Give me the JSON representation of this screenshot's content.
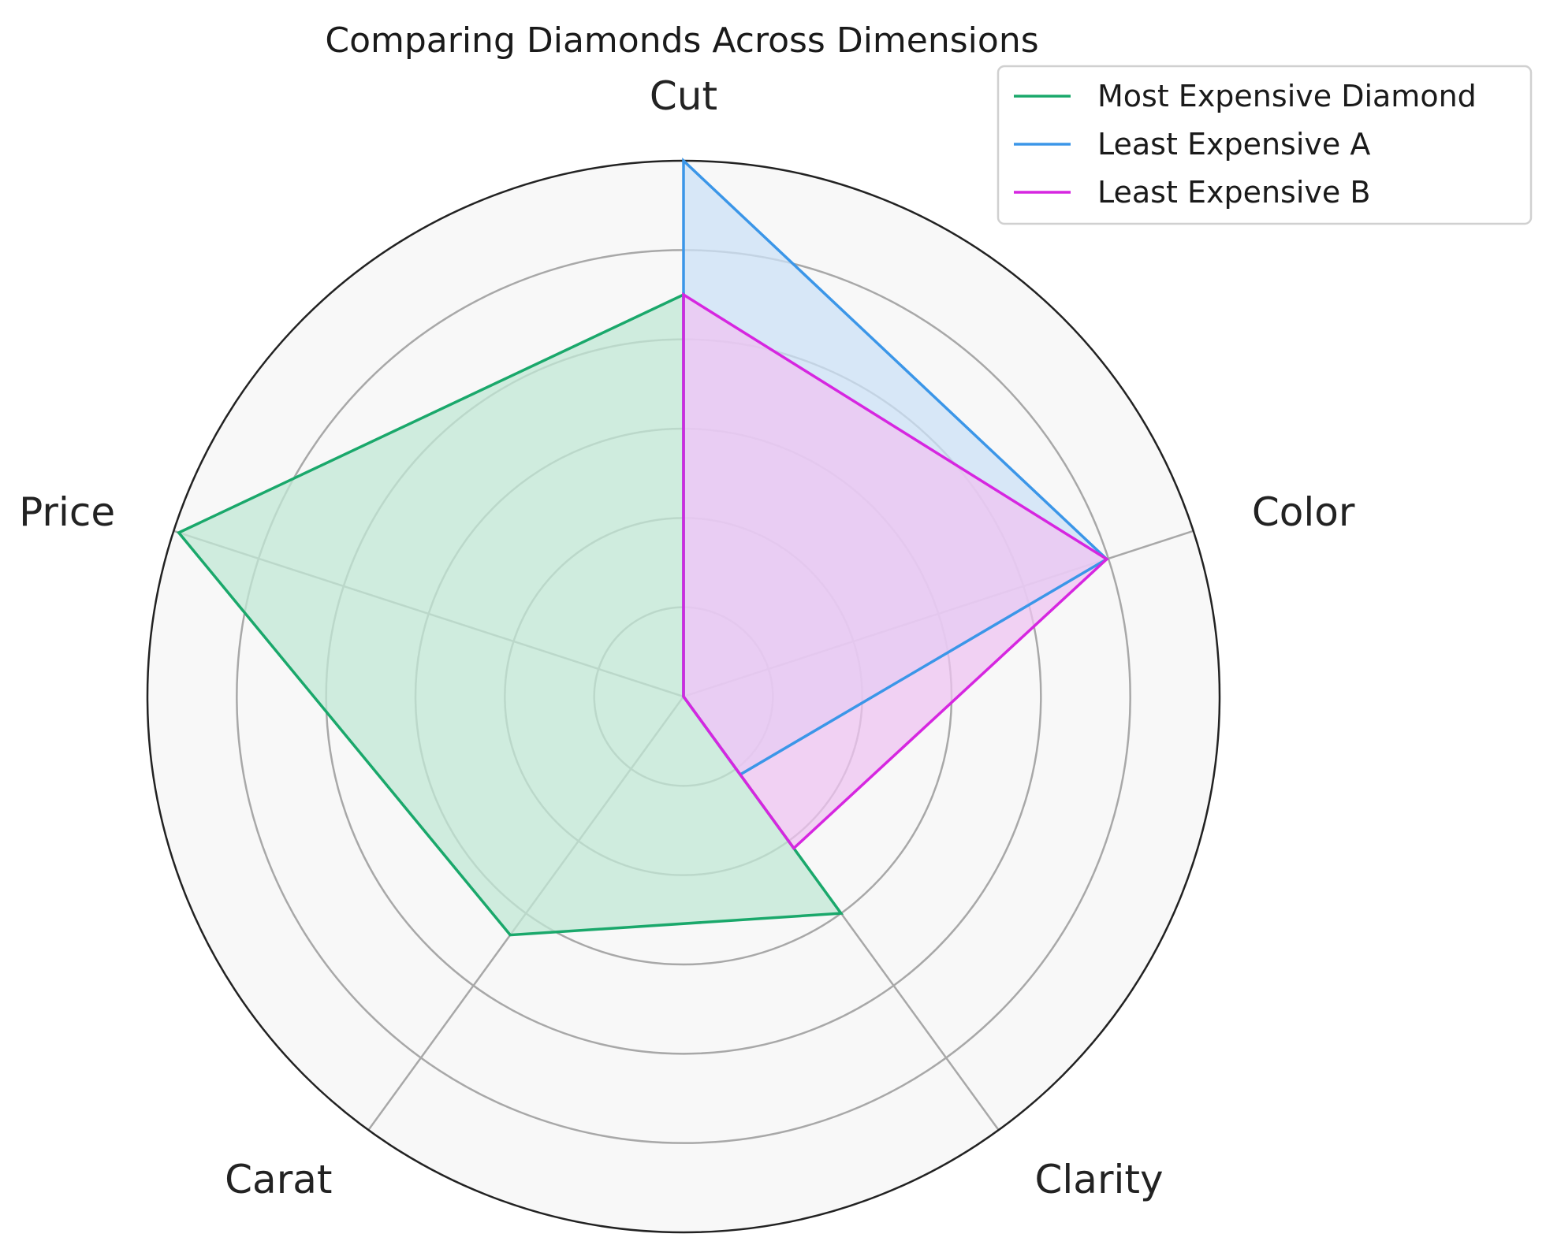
{
  "chart_data": {
    "type": "radar",
    "title": "Comparing Diamonds Across Dimensions",
    "axes": [
      "Cut",
      "Color",
      "Clarity",
      "Carat",
      "Price"
    ],
    "rlim": [
      0,
      1
    ],
    "rings": 5,
    "grid": true,
    "legend_position": "top-right",
    "series": [
      {
        "name": "Most Expensive Diamond",
        "color": "#1aa86b",
        "fill": "#c1e8d6",
        "values": [
          0.75,
          0.0,
          0.5,
          0.55,
          0.99
        ]
      },
      {
        "name": "Least Expensive A",
        "color": "#3b96e8",
        "fill": "#cce1f7",
        "values": [
          1.0,
          0.83,
          0.18,
          0.0,
          0.0
        ]
      },
      {
        "name": "Least Expensive B",
        "color": "#d626e0",
        "fill": "#efc4f1",
        "values": [
          0.75,
          0.83,
          0.35,
          0.0,
          0.0
        ]
      }
    ]
  }
}
